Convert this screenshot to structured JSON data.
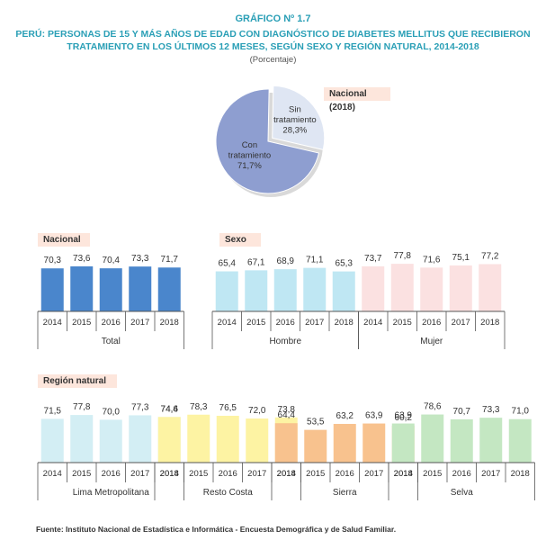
{
  "header": {
    "figure_no": "GRÁFICO Nº 1.7",
    "title_line1": "PERÚ: PERSONAS DE 15 Y MÁS AÑOS DE EDAD CON DIAGNÓSTICO DE DIABETES MELLITUS QUE RECIBIERON",
    "title_line2": "TRATAMIENTO EN LOS ÚLTIMOS 12 MESES, SEGÚN SEXO Y REGIÓN NATURAL, 2014-2018",
    "unit": "(Porcentaje)"
  },
  "tags": {
    "nacional_2018": "Nacional (2018)",
    "nacional": "Nacional",
    "sexo": "Sexo",
    "region": "Región natural"
  },
  "source": "Fuente: Instituto Nacional de Estadística e Informática - Encuesta Demográfica y de Salud Familiar.",
  "chart_data": [
    {
      "type": "pie",
      "title": "Nacional (2018)",
      "slices": [
        {
          "label_line1": "Con",
          "label_line2": "tratamiento",
          "value": 71.7,
          "value_label": "71,7%",
          "color": "#8e9ed0"
        },
        {
          "label_line1": "Sin",
          "label_line2": "tratamiento",
          "value": 28.3,
          "value_label": "28,3%",
          "color": "#dfe6f3"
        }
      ]
    },
    {
      "type": "bar",
      "title": "Nacional",
      "groups": [
        {
          "name": "Total",
          "color": "#4a86cc",
          "categories": [
            "2014",
            "2015",
            "2016",
            "2017",
            "2018"
          ],
          "values": [
            70.3,
            73.6,
            70.4,
            73.3,
            71.7
          ],
          "labels": [
            "70,3",
            "73,6",
            "70,4",
            "73,3",
            "71,7"
          ]
        }
      ]
    },
    {
      "type": "bar",
      "title": "Sexo",
      "groups": [
        {
          "name": "Hombre",
          "color": "#bfe7f3",
          "categories": [
            "2014",
            "2015",
            "2016",
            "2017",
            "2018"
          ],
          "values": [
            65.4,
            67.1,
            68.9,
            71.1,
            65.3
          ],
          "labels": [
            "65,4",
            "67,1",
            "68,9",
            "71,1",
            "65,3"
          ]
        },
        {
          "name": "Mujer",
          "color": "#fbe1e1",
          "categories": [
            "2014",
            "2015",
            "2016",
            "2017",
            "2018"
          ],
          "values": [
            73.7,
            77.8,
            71.6,
            75.1,
            77.2
          ],
          "labels": [
            "73,7",
            "77,8",
            "71,6",
            "75,1",
            "77,2"
          ]
        }
      ]
    },
    {
      "type": "bar",
      "title": "Región natural",
      "groups": [
        {
          "name": "Lima Metropolitana",
          "color": "#d3eef4",
          "categories": [
            "2014",
            "2015",
            "2016",
            "2017",
            "2018"
          ],
          "values": [
            71.5,
            77.8,
            70.0,
            77.3,
            74.4
          ],
          "labels": [
            "71,5",
            "77,8",
            "70,0",
            "77,3",
            "74,4"
          ]
        },
        {
          "name": "Resto Costa",
          "color": "#fdf3a3",
          "categories": [
            "2014",
            "2015",
            "2016",
            "2017",
            "2018"
          ],
          "values": [
            74.6,
            78.3,
            76.5,
            72.0,
            73.8
          ],
          "labels": [
            "74,6",
            "78,3",
            "76,5",
            "72,0",
            "73,8"
          ]
        },
        {
          "name": "Sierra",
          "color": "#f8c28e",
          "categories": [
            "2014",
            "2015",
            "2016",
            "2017",
            "2018"
          ],
          "values": [
            64.4,
            53.5,
            63.2,
            63.9,
            60.2
          ],
          "labels": [
            "64,4",
            "53,5",
            "63,2",
            "63,9",
            "60,2"
          ]
        },
        {
          "name": "Selva",
          "color": "#c4e7c2",
          "categories": [
            "2014",
            "2015",
            "2016",
            "2017",
            "2018"
          ],
          "values": [
            63.9,
            78.6,
            70.7,
            73.3,
            71.0
          ],
          "labels": [
            "63,9",
            "78,6",
            "70,7",
            "73,3",
            "71,0"
          ]
        }
      ]
    }
  ]
}
